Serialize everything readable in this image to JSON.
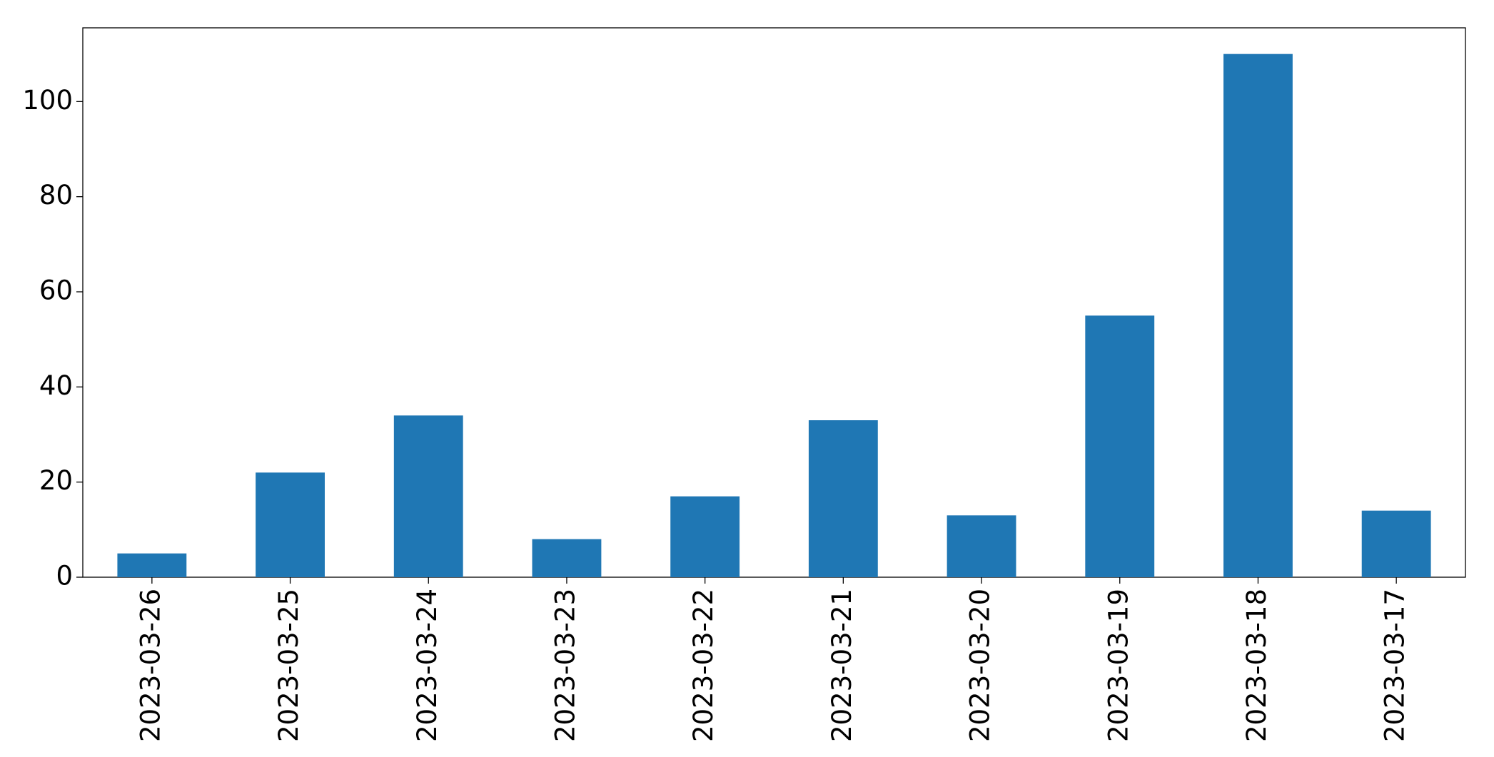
{
  "chart_data": {
    "type": "bar",
    "categories": [
      "2023-03-26",
      "2023-03-25",
      "2023-03-24",
      "2023-03-23",
      "2023-03-22",
      "2023-03-21",
      "2023-03-20",
      "2023-03-19",
      "2023-03-18",
      "2023-03-17"
    ],
    "values": [
      5,
      22,
      34,
      8,
      17,
      33,
      13,
      55,
      110,
      14
    ],
    "color": "#1f77b4",
    "ylim": [
      0,
      115.5
    ],
    "yticks": [
      0,
      20,
      40,
      60,
      80,
      100
    ],
    "grid": false
  }
}
